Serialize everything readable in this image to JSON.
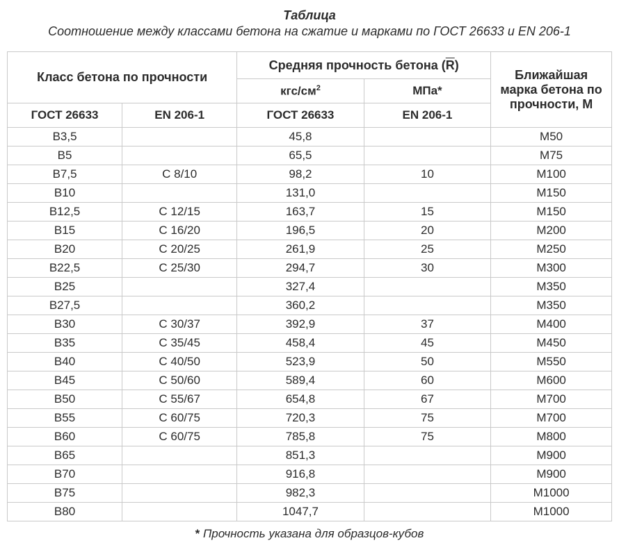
{
  "title": "Таблица",
  "subtitle": "Соотношение между классами бетона на сжатие и марками по ГОСТ 26633 и EN 206-1",
  "headers": {
    "class_group": "Класс бетона по прочности",
    "strength_group_pre": "Средняя прочность бетона (",
    "strength_group_r": "R",
    "strength_group_post": ")",
    "mark_group": "Ближайшая марка бетона по прочности, М",
    "kgs_pre": "кгс/см",
    "kgs_sup": "2",
    "mpa_pre": "МПа",
    "mpa_star": "*",
    "gost": "ГОСТ 26633",
    "en": "EN 206-1"
  },
  "columns": [
    "gost_class",
    "en_class",
    "strength_kgs",
    "strength_mpa",
    "mark"
  ],
  "col_widths": [
    "19%",
    "19%",
    "21%",
    "21%",
    "20%"
  ],
  "rows": [
    [
      "B3,5",
      "",
      "45,8",
      "",
      "М50"
    ],
    [
      "B5",
      "",
      "65,5",
      "",
      "М75"
    ],
    [
      "B7,5",
      "C 8/10",
      "98,2",
      "10",
      "М100"
    ],
    [
      "B10",
      "",
      "131,0",
      "",
      "М150"
    ],
    [
      "B12,5",
      "C 12/15",
      "163,7",
      "15",
      "М150"
    ],
    [
      "B15",
      "C 16/20",
      "196,5",
      "20",
      "М200"
    ],
    [
      "B20",
      "C 20/25",
      "261,9",
      "25",
      "М250"
    ],
    [
      "B22,5",
      "C 25/30",
      "294,7",
      "30",
      "М300"
    ],
    [
      "B25",
      "",
      "327,4",
      "",
      "М350"
    ],
    [
      "B27,5",
      "",
      "360,2",
      "",
      "М350"
    ],
    [
      "B30",
      "C 30/37",
      "392,9",
      "37",
      "М400"
    ],
    [
      "B35",
      "C 35/45",
      "458,4",
      "45",
      "М450"
    ],
    [
      "B40",
      "C 40/50",
      "523,9",
      "50",
      "М550"
    ],
    [
      "B45",
      "C 50/60",
      "589,4",
      "60",
      "М600"
    ],
    [
      "B50",
      "C 55/67",
      "654,8",
      "67",
      "М700"
    ],
    [
      "B55",
      "C 60/75",
      "720,3",
      "75",
      "М700"
    ],
    [
      "B60",
      "C 60/75",
      "785,8",
      "75",
      "М800"
    ],
    [
      "B65",
      "",
      "851,3",
      "",
      "М900"
    ],
    [
      "B70",
      "",
      "916,8",
      "",
      "М900"
    ],
    [
      "B75",
      "",
      "982,3",
      "",
      "М1000"
    ],
    [
      "B80",
      "",
      "1047,7",
      "",
      "М1000"
    ]
  ],
  "footnote_star": "*",
  "footnote_text": " Прочность указана для образцов-кубов",
  "style": {
    "border_color": "#c9c9c9",
    "text_color": "#2b2b2b",
    "body_fontsize": 17,
    "header_fontsize": 18
  }
}
